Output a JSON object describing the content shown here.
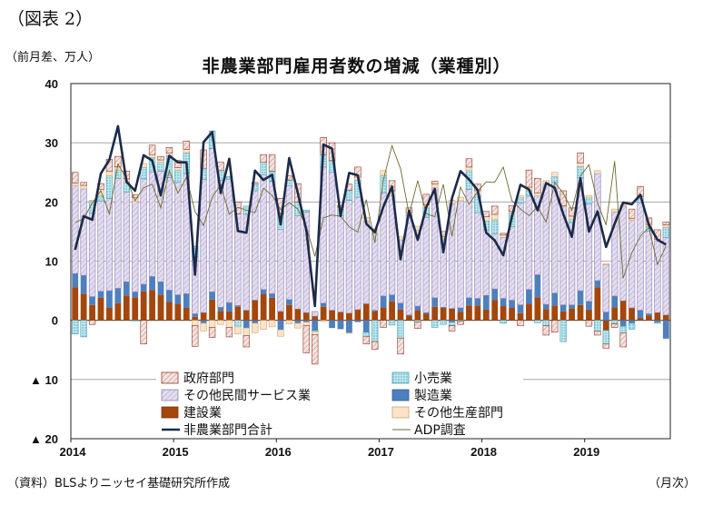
{
  "fig_label": "（図表 2）",
  "unit_label": "（前月差、万人）",
  "source_note": "（資料）BLSよりニッセイ基礎研究所作成",
  "x_unit": "（月次）",
  "colors": {
    "government": "#f3d7d2",
    "government_border": "#8a3a2a",
    "retail": "#a9dde7",
    "other_private": "#ddd4ec",
    "manufacturing": "#4e7fbf",
    "construction": "#a4470c",
    "other_goods": "#fbe3c6",
    "total_line": "#1c2a4a",
    "adp_line": "#6b6b30"
  },
  "chart_data": {
    "type": "bar",
    "title": "非農業部門雇用者数の増減（業種別）",
    "ylim": [
      -20,
      40
    ],
    "yticks": [
      {
        "v": 40,
        "label": "40"
      },
      {
        "v": 30,
        "label": "30"
      },
      {
        "v": 20,
        "label": "20"
      },
      {
        "v": 10,
        "label": "10"
      },
      {
        "v": 0,
        "label": "0"
      },
      {
        "v": -10,
        "label": "▲ 10"
      },
      {
        "v": -20,
        "label": "▲ 20"
      }
    ],
    "xticks": [
      "2014",
      "2015",
      "2016",
      "2017",
      "2018",
      "2019"
    ],
    "grid": true,
    "legend_position": "bottom-inside",
    "legend": [
      {
        "key": "government",
        "label": "政府部門",
        "kind": "bar"
      },
      {
        "key": "retail",
        "label": "小売業",
        "kind": "bar"
      },
      {
        "key": "other_private",
        "label": "その他民間サービス業",
        "kind": "bar"
      },
      {
        "key": "manufacturing",
        "label": "製造業",
        "kind": "bar"
      },
      {
        "key": "construction",
        "label": "建設業",
        "kind": "bar"
      },
      {
        "key": "other_goods",
        "label": "その他生産部門",
        "kind": "bar"
      },
      {
        "key": "total",
        "label": "非農業部門合計",
        "kind": "line"
      },
      {
        "key": "adp",
        "label": "ADP調査",
        "kind": "line"
      }
    ],
    "months": 70,
    "start": "2014-01",
    "end": "2019-10",
    "series": {
      "total": [
        11.9,
        17.6,
        17.0,
        24.8,
        27.1,
        32.8,
        23.4,
        21.9,
        27.9,
        27.0,
        21.1,
        27.8,
        26.7,
        26.7,
        7.7,
        30.1,
        31.8,
        21.5,
        27.3,
        15.1,
        14.8,
        25.3,
        23.7,
        24.6,
        16.2,
        27.4,
        21.5,
        15.2,
        2.4,
        29.7,
        29.0,
        17.6,
        24.9,
        24.5,
        16.3,
        14.9,
        19.2,
        22.6,
        10.3,
        18.5,
        13.6,
        19.1,
        22.2,
        11.5,
        20.6,
        25.2,
        23.8,
        22.0,
        14.8,
        13.5,
        11.0,
        17.5,
        22.9,
        22.1,
        18.6,
        23.2,
        22.4,
        18.0,
        14.1,
        24.0,
        15.0,
        18.4,
        12.4,
        16.3,
        19.9,
        19.6,
        21.2,
        16.1,
        13.6,
        12.8
      ],
      "adp": [
        16.5,
        17.2,
        19.8,
        21.9,
        18.0,
        26.4,
        24.0,
        20.2,
        22.4,
        23.0,
        19.0,
        25.3,
        21.5,
        24.2,
        18.4,
        16.0,
        20.8,
        22.9,
        17.9,
        19.1,
        18.6,
        18.2,
        22.3,
        21.1,
        18.7,
        19.9,
        18.8,
        15.8,
        10.8,
        17.3,
        17.8,
        17.6,
        15.8,
        14.9,
        20.4,
        13.1,
        23.7,
        29.5,
        25.6,
        17.9,
        23.6,
        18.0,
        17.5,
        23.0,
        14.2,
        22.5,
        19.6,
        21.8,
        23.4,
        23.3,
        25.9,
        20.2,
        18.8,
        17.7,
        19.2,
        16.6,
        23.3,
        21.5,
        18.6,
        24.4,
        26.3,
        19.8,
        16.1,
        26.9,
        7.1,
        11.4,
        14.2,
        15.7,
        9.4,
        12.6
      ],
      "government": [
        1.8,
        0.5,
        -0.7,
        1.0,
        2.0,
        1.8,
        1.3,
        0.5,
        -4.0,
        1.6,
        0.6,
        0.9,
        1.2,
        1.4,
        -3.5,
        3.1,
        -1.7,
        1.4,
        -1.6,
        2.0,
        -1.9,
        0.3,
        1.3,
        2.8,
        2.6,
        0.7,
        3.1,
        -4.6,
        -5.0,
        2.9,
        3.0,
        0.3,
        1.0,
        1.7,
        -1.3,
        -1.3,
        -1.2,
        1.7,
        -2.7,
        0.8,
        -1.1,
        1.8,
        0.5,
        0.9,
        -0.9,
        -0.5,
        1.4,
        1.1,
        0.9,
        1.4,
        0.3,
        1.0,
        -0.9,
        2.9,
        2.5,
        -1.6,
        -2.0,
        2.5,
        1.4,
        1.7,
        -1.0,
        -0.7,
        -0.7,
        -0.6,
        -2.4,
        1.6,
        1.7,
        1.1,
        1.6,
        0.5
      ],
      "retail": [
        -2.3,
        -2.8,
        2.0,
        1.0,
        3.8,
        1.4,
        1.7,
        -0.1,
        1.9,
        2.4,
        1.5,
        3.7,
        2.1,
        3.5,
        1.8,
        1.9,
        3.0,
        1.6,
        0.5,
        -1.1,
        1.4,
        1.1,
        2.1,
        1.7,
        2.6,
        1.0,
        2.3,
        0.3,
        -0.2,
        2.1,
        1.9,
        1.1,
        1.7,
        2.9,
        -0.7,
        -3.6,
        3.0,
        -0.8,
        -3.0,
        0.1,
        -0.3,
        1.6,
        -1.2,
        -0.7,
        -0.6,
        -0.2,
        3.2,
        3.0,
        1.5,
        2.4,
        -0.5,
        2.3,
        0.9,
        1.0,
        -0.4,
        -0.9,
        1.0,
        -3.6,
        0.6,
        1.9,
        1.0,
        -1.8,
        -2.3,
        -0.6,
        -1.1,
        -1.0,
        0.7,
        0.8,
        -0.2,
        1.7
      ],
      "other_private": [
        14.9,
        14.6,
        14.1,
        15.2,
        15.6,
        18.6,
        15.2,
        15.3,
        17.8,
        17.7,
        18.7,
        19.0,
        19.0,
        20.3,
        9.6,
        22.5,
        24.2,
        21.5,
        20.8,
        15.5,
        16.2,
        18.5,
        19.4,
        19.0,
        13.9,
        19.2,
        15.8,
        17.0,
        0.8,
        23.0,
        23.3,
        16.3,
        19.1,
        19.0,
        14.0,
        13.0,
        17.4,
        16.8,
        10.7,
        16.9,
        12.8,
        16.1,
        18.6,
        11.6,
        17.7,
        18.1,
        18.3,
        14.5,
        11.1,
        9.3,
        10.3,
        12.4,
        17.2,
        15.8,
        13.3,
        20.3,
        18.7,
        16.6,
        13.9,
        19.1,
        16.5,
        18.1,
        8.0,
        14.2,
        16.0,
        14.8,
        18.2,
        14.0,
        12.1,
        13.1
      ],
      "manufacturing": [
        2.3,
        3.1,
        1.4,
        1.1,
        2.9,
        2.5,
        2.3,
        0.9,
        1.2,
        2.3,
        2.2,
        2.0,
        1.5,
        2.4,
        0.5,
        -0.5,
        1.3,
        0.6,
        1.5,
        0.2,
        -1.3,
        -0.5,
        0.8,
        0.7,
        -1.6,
        0.9,
        -0.5,
        -0.3,
        -1.7,
        0.6,
        -1.3,
        -1.5,
        -2.1,
        -0.3,
        -2.0,
        0.1,
        1.9,
        1.1,
        1.1,
        0.1,
        0.7,
        0.2,
        1.5,
        0.1,
        -0.3,
        0.7,
        1.3,
        1.2,
        2.4,
        1.9,
        1.3,
        1.3,
        1.4,
        2.4,
        3.8,
        0.8,
        2.1,
        1.1,
        0.6,
        2.4,
        1.4,
        1.1,
        1.4,
        1.9,
        -1.0,
        -0.5,
        1.3,
        0.3,
        -0.3,
        -3.1
      ],
      "construction": [
        5.6,
        4.5,
        2.6,
        3.8,
        2.1,
        2.9,
        4.2,
        3.9,
        4.9,
        5.1,
        4.3,
        3.1,
        2.8,
        2.1,
        0.6,
        1.3,
        3.5,
        1.6,
        1.5,
        2.3,
        1.7,
        3.4,
        4.4,
        3.8,
        1.5,
        2.6,
        1.9,
        1.3,
        0.7,
        2.3,
        1.7,
        1.4,
        1.2,
        1.8,
        2.8,
        1.6,
        2.2,
        3.2,
        1.8,
        0.8,
        1.7,
        1.1,
        2.3,
        2.1,
        2.0,
        1.4,
        2.5,
        2.5,
        1.8,
        3.4,
        2.4,
        2.1,
        1.2,
        2.8,
        3.9,
        1.9,
        2.5,
        1.5,
        2.0,
        2.6,
        1.8,
        5.6,
        -1.7,
        2.2,
        3.3,
        2.1,
        0.4,
        0.8,
        1.3,
        0.9
      ],
      "other_goods": [
        0.4,
        0.6,
        0.2,
        1.0,
        0.8,
        0.5,
        0.5,
        0.6,
        0.7,
        0.5,
        0.4,
        0.5,
        0.4,
        0.6,
        -0.9,
        -1.3,
        -1.2,
        -0.7,
        -1.2,
        -1.2,
        -1.3,
        -1.6,
        -1.5,
        -1.1,
        -1.1,
        -0.6,
        -0.8,
        -0.6,
        -0.5,
        -0.2,
        0.1,
        0.3,
        -0.1,
        0.5,
        0.6,
        0.8,
        0.8,
        0.8,
        0.5,
        0.3,
        0.7,
        0.5,
        0.6,
        0.3,
        0.6,
        0.6,
        0.6,
        0.7,
        0.7,
        0.9,
        0.4,
        0.3,
        0.4,
        0.5,
        0.5,
        0.6,
        0.7,
        0.2,
        0.5,
        0.6,
        0.4,
        0.5,
        0.2,
        0.5,
        0.2,
        0.3,
        0.3,
        0.3,
        0.3,
        0.4
      ]
    }
  }
}
